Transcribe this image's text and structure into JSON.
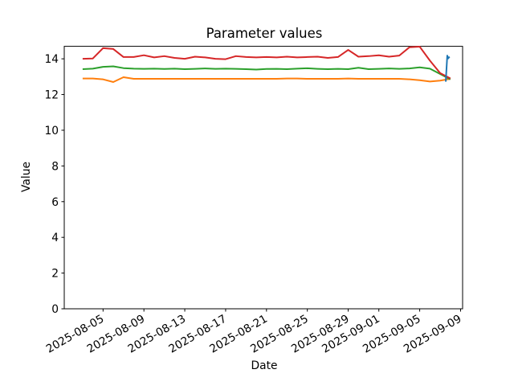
{
  "figure": {
    "background": "#ffffff",
    "axis_color": "#000000"
  },
  "chart_data": {
    "type": "line",
    "title": "Parameter values",
    "xlabel": "Date",
    "ylabel": "Value",
    "grid": false,
    "legend": "none",
    "ylim": [
      0,
      14.7
    ],
    "yticks": [
      0,
      2,
      4,
      6,
      8,
      10,
      12,
      14
    ],
    "x_axis_note": "x values are day offsets from 2025-08-01",
    "xlim_days": [
      0.2,
      39.2
    ],
    "xticks": [
      {
        "label": "2025-08-05",
        "day": 4
      },
      {
        "label": "2025-08-09",
        "day": 8
      },
      {
        "label": "2025-08-13",
        "day": 12
      },
      {
        "label": "2025-08-17",
        "day": 16
      },
      {
        "label": "2025-08-21",
        "day": 20
      },
      {
        "label": "2025-08-25",
        "day": 24
      },
      {
        "label": "2025-08-29",
        "day": 28
      },
      {
        "label": "2025-09-01",
        "day": 31
      },
      {
        "label": "2025-09-05",
        "day": 35
      },
      {
        "label": "2025-09-09",
        "day": 39
      }
    ],
    "series": [
      {
        "name": "orange-line",
        "color": "#ff7f0e",
        "start_date": "2025-08-03",
        "x_start_day": 2,
        "x_step": 1,
        "values": [
          12.9,
          12.9,
          12.85,
          12.7,
          12.97,
          12.88,
          12.88,
          12.88,
          12.88,
          12.88,
          12.88,
          12.88,
          12.88,
          12.88,
          12.88,
          12.88,
          12.88,
          12.88,
          12.88,
          12.88,
          12.9,
          12.9,
          12.88,
          12.88,
          12.88,
          12.88,
          12.9,
          12.88,
          12.88,
          12.88,
          12.88,
          12.88,
          12.85,
          12.8,
          12.73,
          12.78,
          12.88
        ]
      },
      {
        "name": "green-line",
        "color": "#2ca02c",
        "start_date": "2025-08-03",
        "x_start_day": 2,
        "x_step": 1,
        "values": [
          13.42,
          13.45,
          13.55,
          13.58,
          13.48,
          13.45,
          13.44,
          13.45,
          13.43,
          13.45,
          13.42,
          13.44,
          13.46,
          13.44,
          13.45,
          13.44,
          13.42,
          13.4,
          13.43,
          13.44,
          13.42,
          13.45,
          13.47,
          13.44,
          13.42,
          13.44,
          13.42,
          13.5,
          13.42,
          13.44,
          13.46,
          13.44,
          13.46,
          13.52,
          13.45,
          13.15,
          12.85
        ]
      },
      {
        "name": "red-line",
        "color": "#d62728",
        "start_date": "2025-08-03",
        "x_start_day": 2,
        "x_step": 1,
        "values": [
          14.0,
          14.02,
          14.6,
          14.55,
          14.1,
          14.1,
          14.2,
          14.08,
          14.15,
          14.05,
          14.0,
          14.12,
          14.08,
          14.0,
          13.98,
          14.15,
          14.1,
          14.08,
          14.1,
          14.08,
          14.12,
          14.08,
          14.1,
          14.12,
          14.05,
          14.1,
          14.5,
          14.12,
          14.15,
          14.2,
          14.12,
          14.18,
          14.65,
          14.68,
          13.9,
          13.2,
          12.9
        ]
      },
      {
        "name": "blue-line",
        "color": "#1f77b4",
        "x_days": [
          37.55,
          37.7,
          37.78,
          37.92
        ],
        "values": [
          12.72,
          14.18,
          14.02,
          14.12
        ]
      }
    ]
  }
}
